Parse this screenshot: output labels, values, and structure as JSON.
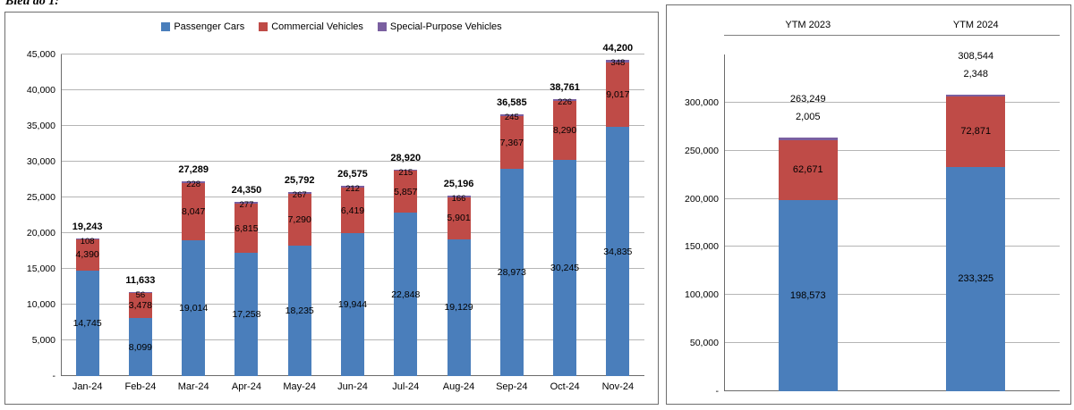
{
  "caption": "Biểu đồ 1:",
  "legend": {
    "items": [
      {
        "label": "Passenger Cars"
      },
      {
        "label": "Commercial Vehicles"
      },
      {
        "label": "Special-Purpose Vehicles"
      }
    ]
  },
  "chart_data": [
    {
      "id": "monthly-stacked-bar",
      "type": "bar",
      "stacked": true,
      "title": "",
      "xlabel": "",
      "ylabel": "",
      "categories": [
        "Jan-24",
        "Feb-24",
        "Mar-24",
        "Apr-24",
        "May-24",
        "Jun-24",
        "Jul-24",
        "Aug-24",
        "Sep-24",
        "Oct-24",
        "Nov-24"
      ],
      "series": [
        {
          "name": "Passenger Cars",
          "color": "#4a7ebb",
          "values": [
            14745,
            8099,
            19014,
            17258,
            18235,
            19944,
            22848,
            19129,
            28973,
            30245,
            34835
          ]
        },
        {
          "name": "Commercial Vehicles",
          "color": "#bf4b47",
          "values": [
            4390,
            3478,
            8047,
            6815,
            7290,
            6419,
            5857,
            5901,
            7367,
            8290,
            9017
          ]
        },
        {
          "name": "Special-Purpose Vehicles",
          "color": "#7a5fa0",
          "values": [
            108,
            56,
            228,
            277,
            267,
            212,
            215,
            166,
            245,
            226,
            348
          ]
        }
      ],
      "totals": [
        19243,
        11633,
        27289,
        24350,
        25792,
        26575,
        28920,
        25196,
        36585,
        38761,
        44200
      ],
      "ylim": [
        0,
        45000
      ],
      "ytick_max": 45000,
      "ytick_step": 5000,
      "ytick_labels": [
        "-",
        "5,000",
        "10,000",
        "15,000",
        "20,000",
        "25,000",
        "30,000",
        "35,000",
        "40,000",
        "45,000"
      ],
      "grid": true,
      "legend_position": "top"
    },
    {
      "id": "ytm-stacked-bar",
      "type": "bar",
      "stacked": true,
      "title": "",
      "xlabel": "",
      "ylabel": "",
      "categories": [
        "YTM 2023",
        "YTM 2024"
      ],
      "categories_position": "top",
      "series": [
        {
          "name": "Passenger Cars",
          "color": "#4a7ebb",
          "values": [
            198573,
            233325
          ]
        },
        {
          "name": "Commercial Vehicles",
          "color": "#bf4b47",
          "values": [
            62671,
            72871
          ]
        },
        {
          "name": "Special-Purpose Vehicles",
          "color": "#7a5fa0",
          "values": [
            2005,
            2348
          ]
        }
      ],
      "totals": [
        263249,
        308544
      ],
      "ylim": [
        0,
        350000
      ],
      "ytick_max": 300000,
      "ytick_step": 50000,
      "ytick_labels": [
        "-",
        "50,000",
        "100,000",
        "150,000",
        "200,000",
        "250,000",
        "300,000"
      ],
      "grid": true,
      "legend_position": "none"
    }
  ]
}
